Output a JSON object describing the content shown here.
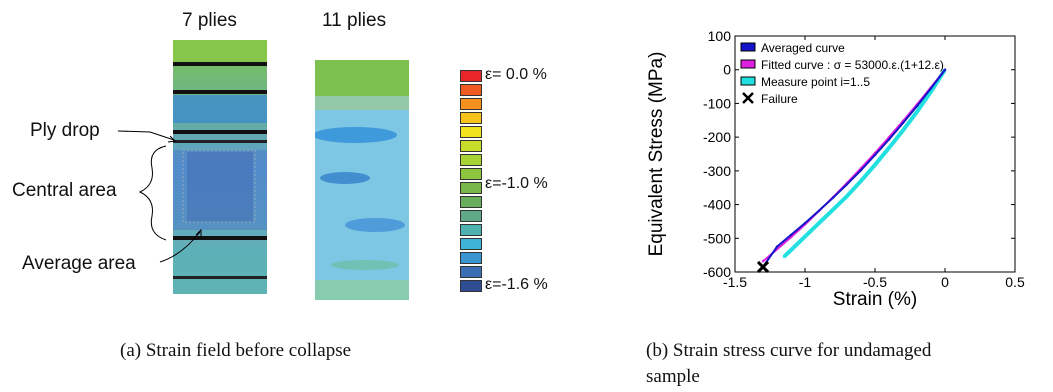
{
  "figure_a": {
    "col_labels": [
      "7 plies",
      "11 plies"
    ],
    "annotations": {
      "ply_drop": "Ply drop",
      "central_area": "Central area",
      "average_area": "Average area"
    },
    "colorbar": {
      "colors": [
        "#e8262a",
        "#ee5a22",
        "#f5921f",
        "#f8c21c",
        "#f0e421",
        "#c8dc2a",
        "#a6d236",
        "#8cc63f",
        "#78b84a",
        "#6aae5c",
        "#5fa888",
        "#4fb0b0",
        "#3fb4d6",
        "#3a95d0",
        "#3a6fb4",
        "#2f4d92"
      ],
      "labels": [
        "ε= 0.0 %",
        "ε=-1.0 %",
        "ε=-1.6 %"
      ]
    },
    "caption": "(a)  Strain field before collapse"
  },
  "figure_b": {
    "caption_line1": "(b)  Strain stress curve for undamaged",
    "caption_line2": "sample",
    "chart_data": {
      "type": "line",
      "xlabel": "Strain (%)",
      "ylabel": "Equivalent Stress (MPa)",
      "xlim": [
        -1.5,
        0.5
      ],
      "ylim": [
        -600,
        100
      ],
      "xticks": [
        -1.5,
        -1,
        -0.5,
        0,
        0.5
      ],
      "xtick_labels": [
        "-1.5",
        "-1",
        "-0.5",
        "0",
        "0.5"
      ],
      "yticks": [
        100,
        0,
        -100,
        -200,
        -300,
        -400,
        -500,
        -600
      ],
      "ytick_labels": [
        "100",
        "0",
        "-100",
        "-200",
        "-300",
        "-400",
        "-500",
        "-600"
      ],
      "grid": false,
      "legend_position": "top-left",
      "legend": [
        {
          "label": "Averaged curve",
          "color": "#1414c8",
          "kind": "box"
        },
        {
          "label": "Fitted curve : σ = 53000.ε.(1+12.ε)",
          "color": "#e020e0",
          "kind": "box"
        },
        {
          "label": "Measure point i=1..5",
          "color": "#22e0e0",
          "kind": "box"
        },
        {
          "label": "Failure",
          "color": "#000000",
          "kind": "cross"
        }
      ],
      "series": [
        {
          "name": "Averaged curve",
          "color": "#1414c8",
          "x": [
            0,
            -0.1,
            -0.2,
            -0.3,
            -0.4,
            -0.5,
            -0.6,
            -0.7,
            -0.8,
            -0.9,
            -1.0,
            -1.1,
            -1.2,
            -1.3
          ],
          "y": [
            0,
            -55,
            -108,
            -158,
            -207,
            -253,
            -298,
            -340,
            -380,
            -418,
            -455,
            -490,
            -525,
            -585
          ]
        },
        {
          "name": "Fitted curve : σ = 53000.ε.(1+12.ε)",
          "color": "#e020e0",
          "x": [
            0,
            -0.1,
            -0.2,
            -0.3,
            -0.4,
            -0.5,
            -0.6,
            -0.7,
            -0.8,
            -0.9,
            -1.0,
            -1.1,
            -1.2,
            -1.3
          ],
          "y": [
            0,
            -52,
            -103,
            -152,
            -200,
            -247,
            -292,
            -336,
            -378,
            -419,
            -459,
            -497,
            -533,
            -568
          ]
        },
        {
          "name": "Measure point i=1..5",
          "color": "#22e0e0",
          "x": [
            0,
            -0.1,
            -0.2,
            -0.3,
            -0.4,
            -0.5,
            -0.6,
            -0.7,
            -0.8,
            -0.9,
            -1.0,
            -1.1,
            -1.15
          ],
          "y": [
            0,
            -65,
            -125,
            -180,
            -232,
            -282,
            -330,
            -375,
            -415,
            -455,
            -495,
            -535,
            -555
          ]
        },
        {
          "name": "Failure",
          "color": "#000000",
          "x": [
            -1.3
          ],
          "y": [
            -585
          ]
        }
      ]
    }
  }
}
